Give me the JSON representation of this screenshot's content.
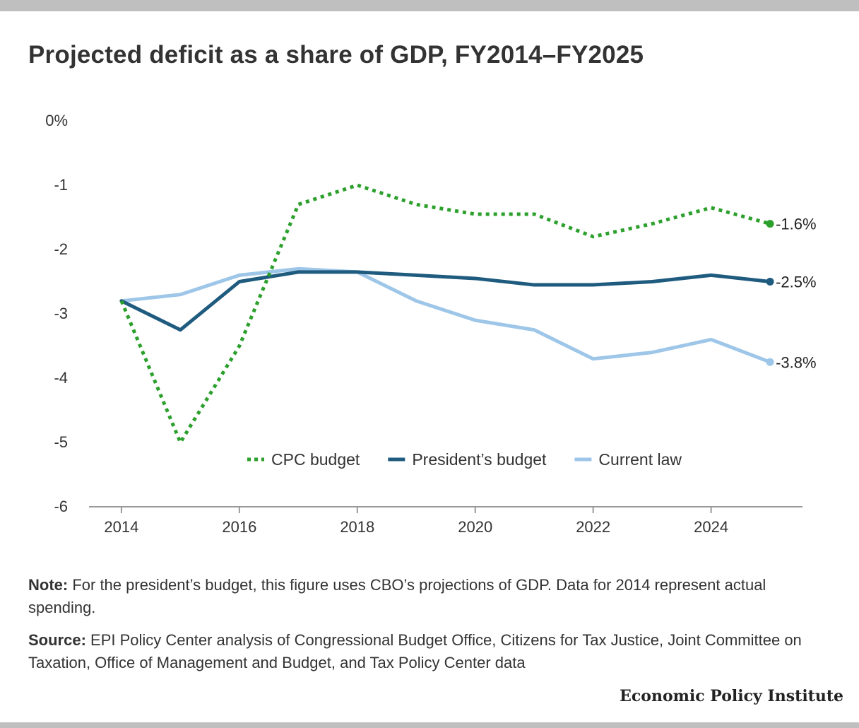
{
  "title": "Projected deficit as a share of GDP, FY2014–FY2025",
  "note": {
    "label": "Note:",
    "text": " For the president’s budget, this figure uses CBO’s projections of GDP. Data for 2014 represent actual spending."
  },
  "source": {
    "label": "Source:",
    "text": " EPI Policy Center analysis of Congressional Budget Office, Citizens for Tax Justice, Joint Committee on Taxation, Office of Management and Budget, and Tax Policy Center data"
  },
  "brand": "Economic Policy Institute",
  "chart_data": {
    "type": "line",
    "title": "Projected deficit as a share of GDP, FY2014–FY2025",
    "xlabel": "",
    "ylabel": "",
    "x": [
      2014,
      2015,
      2016,
      2017,
      2018,
      2019,
      2020,
      2021,
      2022,
      2023,
      2024,
      2025
    ],
    "xlim": [
      2013.45,
      2025.55
    ],
    "ylim": [
      -6,
      0
    ],
    "x_ticks": [
      2014,
      2016,
      2018,
      2020,
      2022,
      2024
    ],
    "x_tick_labels": [
      "2014",
      "2016",
      "2018",
      "2020",
      "2022",
      "2024"
    ],
    "y_ticks": [
      0,
      -1,
      -2,
      -3,
      -4,
      -5,
      -6
    ],
    "y_tick_labels": [
      "0%",
      "-1",
      "-2",
      "-3",
      "-4",
      "-5",
      "-6"
    ],
    "grid": false,
    "legend_position": "bottom-center",
    "series": [
      {
        "name": "CPC budget",
        "color": "#2ca02c",
        "style": "dotted",
        "values": [
          -2.8,
          -5.0,
          -3.5,
          -1.3,
          -1.0,
          -1.3,
          -1.45,
          -1.45,
          -1.8,
          -1.6,
          -1.35,
          -1.6
        ],
        "end_label": "-1.6%"
      },
      {
        "name": "President’s budget",
        "color": "#1f5b7e",
        "style": "solid",
        "values": [
          -2.8,
          -3.25,
          -2.5,
          -2.35,
          -2.35,
          -2.4,
          -2.45,
          -2.55,
          -2.55,
          -2.5,
          -2.4,
          -2.5
        ],
        "end_label": "-2.5%"
      },
      {
        "name": "Current law",
        "color": "#9ec6e8",
        "style": "solid",
        "values": [
          -2.8,
          -2.7,
          -2.4,
          -2.3,
          -2.35,
          -2.8,
          -3.1,
          -3.25,
          -3.7,
          -3.6,
          -3.4,
          -3.75
        ],
        "end_label": "-3.8%"
      }
    ]
  }
}
